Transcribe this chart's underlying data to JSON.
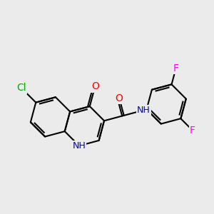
{
  "background_color": "#ebebeb",
  "bond_color": "#000000",
  "bond_width": 1.5,
  "atom_colors": {
    "O": "#ff0000",
    "N": "#0000cc",
    "Cl": "#00aa00",
    "F": "#ff00ff",
    "C": "#000000"
  },
  "font_size": 9,
  "figsize": [
    3.0,
    3.0
  ],
  "dpi": 100
}
